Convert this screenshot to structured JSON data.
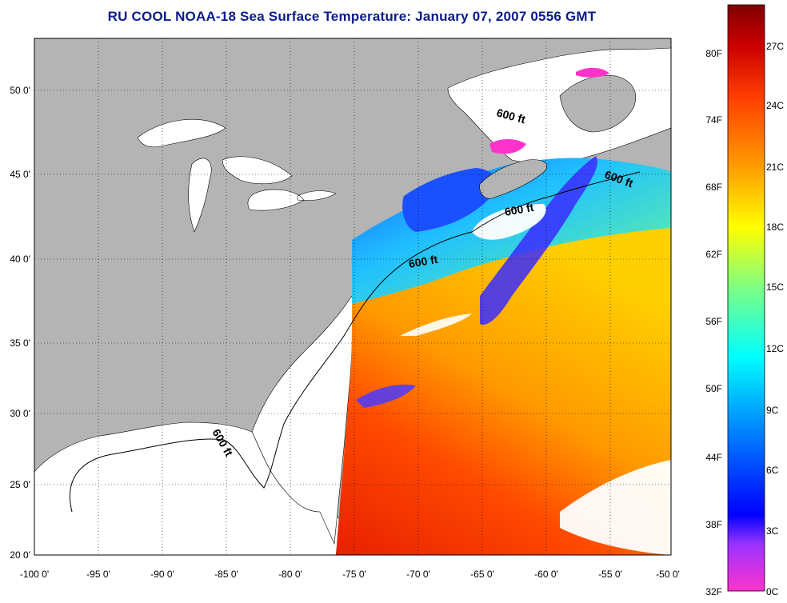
{
  "title": "RU COOL  NOAA-18  Sea Surface Temperature:  January 07, 2007 0556 GMT",
  "map": {
    "lon_range": [
      -100,
      -50
    ],
    "lat_range": [
      20,
      52.5
    ],
    "lat_ticks": [
      "50 0'",
      "45 0'",
      "40 0'",
      "35 0'",
      "30 0'",
      "25 0'",
      "20 0'"
    ],
    "lon_ticks": [
      "-100 0'",
      "-95 0'",
      "-90 0'",
      "-85 0'",
      "-80 0'",
      "-75 0'",
      "-70 0'",
      "-65 0'",
      "-60 0'",
      "-55 0'",
      "-50 0'"
    ],
    "contour_labels": [
      "600 ft",
      "600 ft",
      "600 ft",
      "600 ft",
      "600 ft"
    ],
    "land_color": "#b4b4b4",
    "ocean_nodata_color": "#ffffff"
  },
  "colorbar": {
    "fahrenheit_labels": [
      "80F",
      "74F",
      "68F",
      "62F",
      "56F",
      "50F",
      "44F",
      "38F",
      "32F"
    ],
    "celsius_labels": [
      "27C",
      "24C",
      "21C",
      "18C",
      "15C",
      "12C",
      "9C",
      "6C",
      "3C",
      "0C"
    ],
    "colors": [
      "#ff33cc",
      "#9933ff",
      "#0000ff",
      "#0080ff",
      "#00ffff",
      "#80ff80",
      "#ffff00",
      "#ffa000",
      "#ff4000",
      "#cc0000",
      "#800000"
    ]
  }
}
